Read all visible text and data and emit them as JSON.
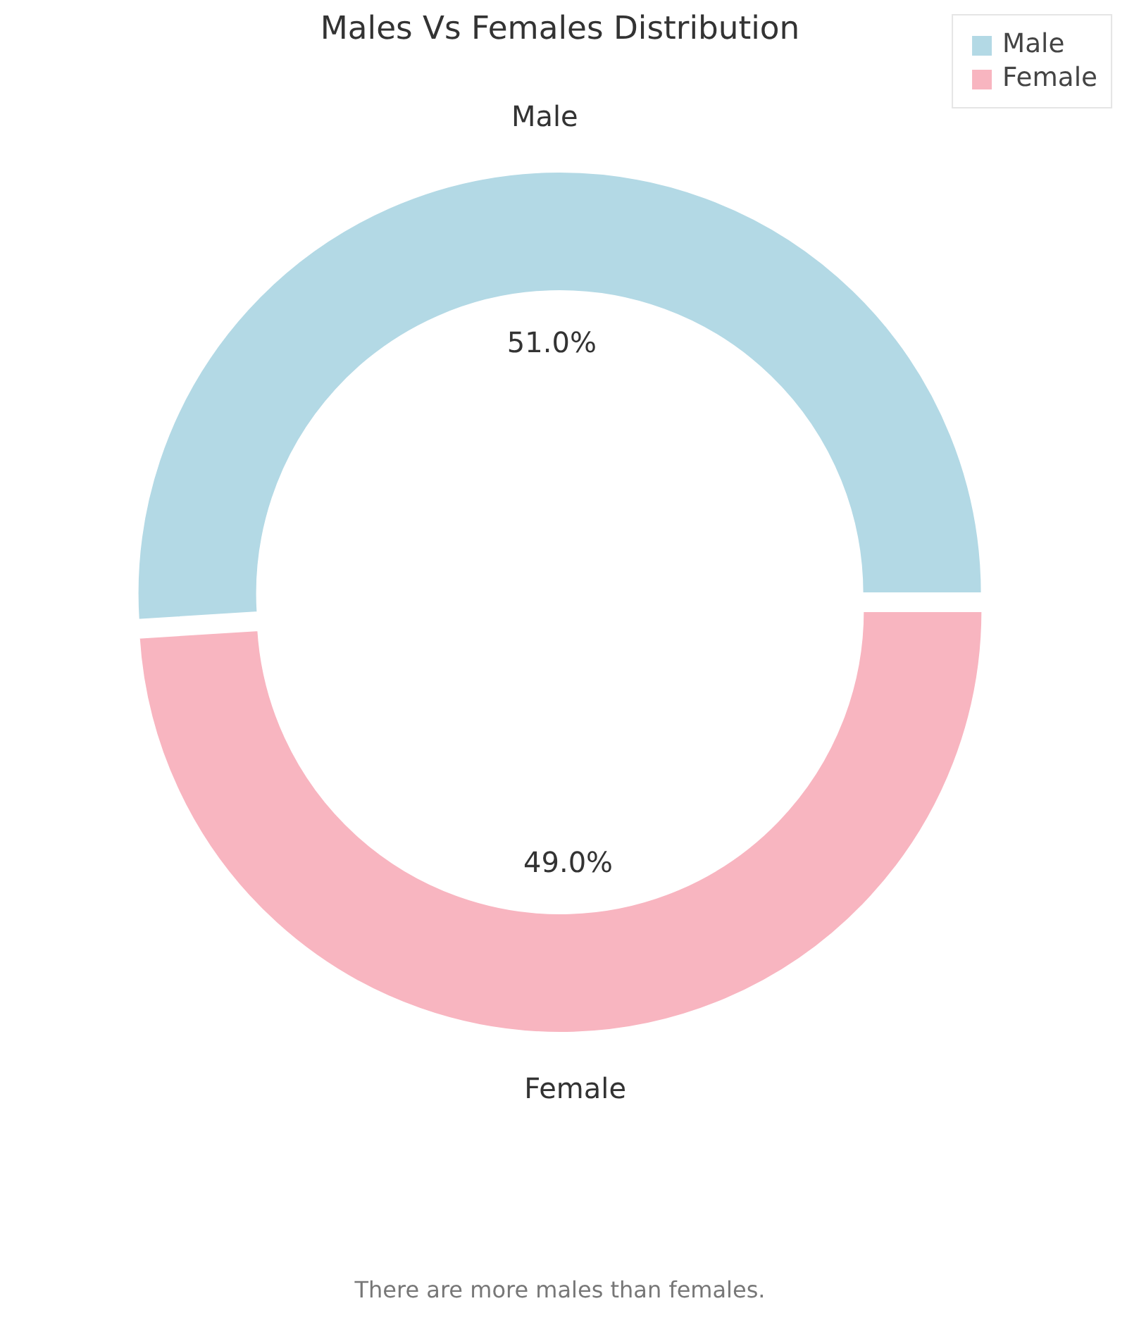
{
  "chart_data": {
    "type": "donut",
    "title": "Males Vs Females Distribution",
    "categories": [
      "Male",
      "Female"
    ],
    "values": [
      51.0,
      49.0
    ],
    "colors": [
      "#b3d9e5",
      "#f8b5c0"
    ],
    "value_labels": [
      "51.0%",
      "49.0%"
    ],
    "legend": "top right",
    "annotations": [
      "There are more males than females."
    ]
  }
}
